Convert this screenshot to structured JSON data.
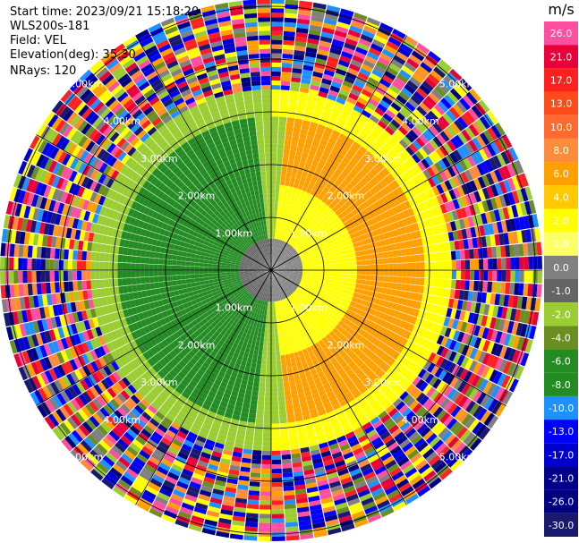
{
  "header": {
    "start_time": "Start time: 2023/09/21 15:18:20",
    "instrument": "WLS200s-181",
    "field": "Field: VEL",
    "elevation": "Elevation(deg): 35.30",
    "nrays": "NRays: 120"
  },
  "colorbar": {
    "unit": "m/s",
    "ticks": [
      "26.0",
      "21.0",
      "17.0",
      "13.0",
      "10.0",
      "8.0",
      "6.0",
      "4.0",
      "2.0",
      "1.0",
      "0.0",
      "-1.0",
      "-2.0",
      "-4.0",
      "-6.0",
      "-8.0",
      "-10.0",
      "-13.0",
      "-17.0",
      "-21.0",
      "-26.0",
      "-30.0"
    ],
    "colors": [
      "#ff4fa0",
      "#e8003a",
      "#ff2020",
      "#ff4a1a",
      "#ff6a30",
      "#ff8c3a",
      "#ffa000",
      "#ffc800",
      "#ffff00",
      "#ffff66",
      "#808080",
      "#646464",
      "#9acd32",
      "#6b8e23",
      "#228b22",
      "#228b22",
      "#1e90ff",
      "#0000ff",
      "#0000cd",
      "#00008b",
      "#000080",
      "#191970"
    ]
  },
  "chart_data": {
    "type": "heatmap",
    "projection": "polar (PPI)",
    "field": "VEL",
    "unit": "m/s",
    "nrays": 120,
    "range_rings": [
      "1.00km",
      "2.00km",
      "3.00km",
      "4.00km",
      "5.00km"
    ],
    "max_range_km": 5.0,
    "color_scale_min": -30.0,
    "color_scale_max": 26.0,
    "regions": [
      {
        "description": "inner disk, left half",
        "azimuth_deg": [
          180,
          360
        ],
        "range_km": [
          0,
          3.0
        ],
        "velocity_ms": -6.0
      },
      {
        "description": "inner disk, right half",
        "azimuth_deg": [
          0,
          180
        ],
        "range_km": [
          0,
          3.0
        ],
        "velocity_ms": 4.0
      },
      {
        "description": "outer noise ring",
        "range_km": [
          3.5,
          5.0
        ],
        "velocity_ms": "mixed"
      }
    ]
  }
}
